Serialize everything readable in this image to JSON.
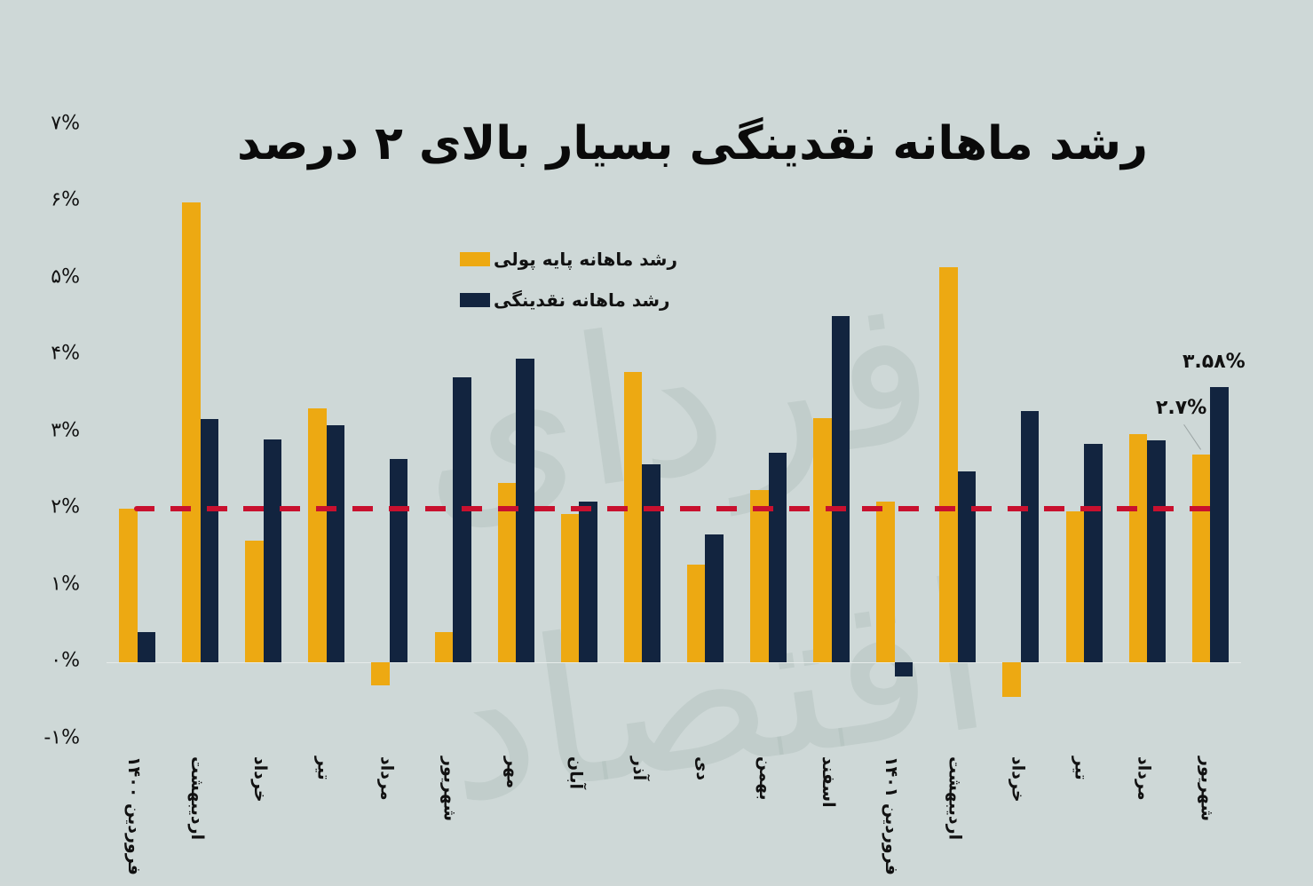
{
  "title": "رشد ماهانه نقدینگی بسیار بالای ۲ درصد",
  "legend": [
    {
      "label": "رشد ماهانه پایه پولی",
      "color": "#eda912"
    },
    {
      "label": "رشد ماهانه نقدینگی",
      "color": "#12243f"
    }
  ],
  "y_ticks": [
    "۷%",
    "۶%",
    "۵%",
    "۴%",
    "۳%",
    "۲%",
    "۱%",
    "۰%",
    "-۱%"
  ],
  "watermark": "فردای اقتصاد",
  "reference_line": {
    "value": 2,
    "color": "#c8102e",
    "style": "dashed"
  },
  "annotations": [
    {
      "text": "۳.۵۸%",
      "target": "شهریور 1401 navy"
    },
    {
      "text": "۲.۷%",
      "target": "شهریور 1401 orange"
    }
  ],
  "chart_data": {
    "type": "bar",
    "title": "رشد ماهانه نقدینگی بسیار بالای ۲ درصد",
    "xlabel": "",
    "ylabel": "",
    "ylim": [
      -1,
      7
    ],
    "y_tick_values": [
      -1,
      0,
      1,
      2,
      3,
      4,
      5,
      6,
      7
    ],
    "grid": false,
    "legend_position": "upper-center",
    "categories": [
      "فروردین ۱۴۰۰",
      "اردیبهشت",
      "خرداد",
      "تیر",
      "مرداد",
      "شهریور",
      "مهر",
      "آبان",
      "آذر",
      "دی",
      "بهمن",
      "اسفند",
      "فروردین ۱۴۰۱",
      "اردیبهشت",
      "خرداد",
      "تیر",
      "مرداد",
      "شهریور"
    ],
    "series": [
      {
        "name": "رشد ماهانه پایه پولی",
        "color": "#eda912",
        "values": [
          2.0,
          5.99,
          1.58,
          3.31,
          -0.3,
          0.39,
          2.34,
          1.93,
          3.78,
          1.27,
          2.24,
          3.18,
          2.09,
          5.14,
          -0.45,
          1.97,
          2.97,
          2.7
        ]
      },
      {
        "name": "رشد ماهانه نقدینگی",
        "color": "#12243f",
        "values": [
          0.39,
          3.17,
          2.9,
          3.09,
          2.65,
          3.71,
          3.95,
          2.09,
          2.58,
          1.66,
          2.73,
          4.51,
          -0.19,
          2.49,
          3.27,
          2.84,
          2.89,
          3.58
        ]
      }
    ],
    "reference_lines": [
      {
        "y": 2,
        "style": "dashed",
        "color": "#c8102e"
      }
    ],
    "annotations": [
      {
        "text": "۳.۵۸%",
        "category_index": 17,
        "series": 1,
        "value": 3.58
      },
      {
        "text": "۲.۷%",
        "category_index": 17,
        "series": 0,
        "value": 2.7
      }
    ]
  }
}
